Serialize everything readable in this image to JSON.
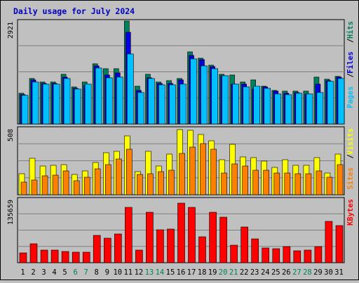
{
  "chart_data": [
    {
      "type": "bar",
      "title": "Daily usage for July 2024",
      "categories": [
        "1",
        "2",
        "3",
        "4",
        "5",
        "6",
        "7",
        "8",
        "9",
        "10",
        "11",
        "12",
        "13",
        "14",
        "15",
        "16",
        "17",
        "18",
        "19",
        "20",
        "21",
        "22",
        "23",
        "24",
        "25",
        "26",
        "27",
        "28",
        "29",
        "30",
        "31"
      ],
      "weekend_days": [
        "6",
        "7",
        "13",
        "14",
        "20",
        "21",
        "27",
        "28"
      ],
      "y_tick_label": "2921",
      "ylim": [
        0,
        2921
      ],
      "grid": true,
      "side_label": [
        "Pages",
        "Files",
        "Hits"
      ],
      "series": [
        {
          "name": "Hits",
          "values": [
            870,
            1290,
            1190,
            1190,
            1420,
            1050,
            1200,
            1700,
            1570,
            1570,
            2921,
            1080,
            1410,
            1190,
            1230,
            1290,
            2050,
            1870,
            1660,
            1420,
            1390,
            1190,
            1260,
            1070,
            950,
            940,
            940,
            930,
            1330,
            1280,
            1350
          ]
        },
        {
          "name": "Files",
          "values": [
            830,
            1250,
            1150,
            1160,
            1330,
            1020,
            1100,
            1640,
            1400,
            1460,
            2600,
            950,
            1320,
            1150,
            1150,
            1250,
            1950,
            1830,
            1620,
            1380,
            1140,
            1130,
            1000,
            1050,
            930,
            880,
            890,
            850,
            1140,
            1230,
            1340
          ]
        },
        {
          "name": "Pages",
          "values": [
            810,
            1200,
            1140,
            1140,
            1290,
            990,
            1140,
            1580,
            1320,
            1330,
            1990,
            890,
            1300,
            1110,
            1120,
            1140,
            1840,
            1650,
            1560,
            1370,
            1130,
            1060,
            1070,
            1010,
            860,
            830,
            880,
            850,
            900,
            1210,
            1300
          ]
        }
      ],
      "colors": {
        "Hits": "#00805c",
        "Files": "#0000e0",
        "Pages": "#00c0ff"
      }
    },
    {
      "type": "bar",
      "categories": [
        "1",
        "2",
        "3",
        "4",
        "5",
        "6",
        "7",
        "8",
        "9",
        "10",
        "11",
        "12",
        "13",
        "14",
        "15",
        "16",
        "17",
        "18",
        "19",
        "20",
        "21",
        "22",
        "23",
        "24",
        "25",
        "26",
        "27",
        "28",
        "29",
        "30",
        "31"
      ],
      "y_tick_label": "508",
      "ylim": [
        0,
        508
      ],
      "grid": true,
      "side_label": [
        "Sites",
        "Visits"
      ],
      "series": [
        {
          "name": "Visits",
          "values": [
            160,
            278,
            220,
            224,
            228,
            157,
            180,
            245,
            320,
            330,
            450,
            176,
            330,
            220,
            310,
            498,
            492,
            460,
            410,
            268,
            385,
            288,
            283,
            255,
            207,
            270,
            225,
            222,
            285,
            166,
            308
          ]
        },
        {
          "name": "Sites",
          "values": [
            95,
            114,
            142,
            148,
            180,
            107,
            133,
            198,
            230,
            275,
            350,
            155,
            160,
            175,
            187,
            316,
            363,
            390,
            350,
            165,
            235,
            220,
            187,
            187,
            165,
            165,
            160,
            160,
            180,
            133,
            230
          ]
        }
      ],
      "colors": {
        "Visits": "#ffff00",
        "Sites": "#ff8000"
      }
    },
    {
      "type": "bar",
      "categories": [
        "1",
        "2",
        "3",
        "4",
        "5",
        "6",
        "7",
        "8",
        "9",
        "10",
        "11",
        "12",
        "13",
        "14",
        "15",
        "16",
        "17",
        "18",
        "19",
        "20",
        "21",
        "22",
        "23",
        "24",
        "25",
        "26",
        "27",
        "28",
        "29",
        "30",
        "31"
      ],
      "y_tick_label": "135659",
      "ylim": [
        0,
        185000
      ],
      "grid": true,
      "side_label": [
        "KBytes"
      ],
      "series": [
        {
          "name": "KBytes",
          "values": [
            28000,
            54000,
            36000,
            36000,
            32000,
            30000,
            31000,
            79000,
            71000,
            83000,
            160000,
            36000,
            147000,
            95000,
            97000,
            172000,
            161000,
            76000,
            147000,
            132000,
            51000,
            104000,
            69000,
            43000,
            40000,
            47000,
            35000,
            37000,
            46000,
            119000,
            108000
          ]
        }
      ],
      "colors": {
        "KBytes": "#ff0000"
      }
    }
  ]
}
